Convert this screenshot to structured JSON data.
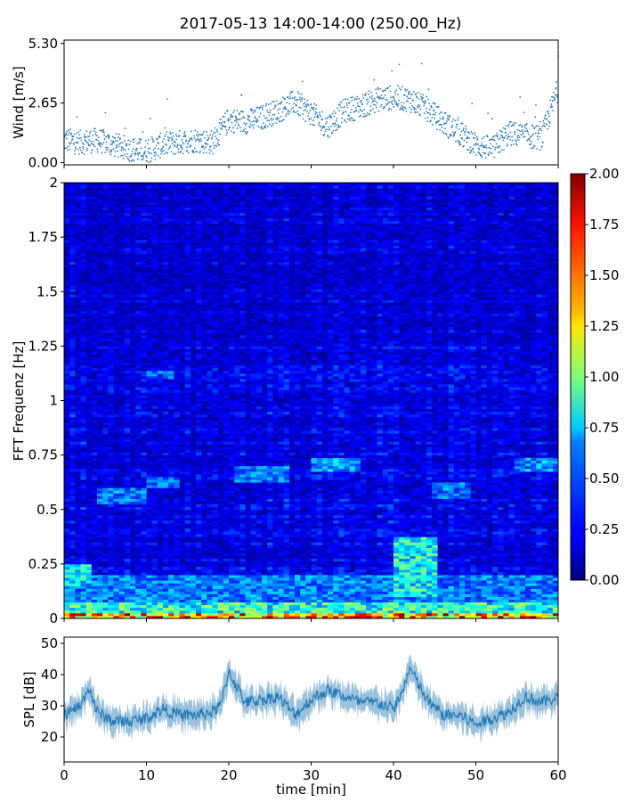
{
  "title": "2017-05-13 14:00-14:00 (250.00_Hz)",
  "chart_data": [
    {
      "id": "wind",
      "type": "scatter",
      "ylabel": "Wind [m/s]",
      "xlabel": "",
      "xlim": [
        0,
        60
      ],
      "ylim": [
        -0.1,
        5.45
      ],
      "yticks": [
        0.0,
        2.65,
        5.3
      ],
      "ytick_labels": [
        "0.00",
        "2.65",
        "5.30"
      ],
      "xticks": [
        0,
        10,
        20,
        30,
        40,
        50,
        60
      ],
      "marker_color": "#1f77b4",
      "trend": {
        "x": [
          0,
          2,
          4,
          6,
          8,
          10,
          12,
          14,
          16,
          18,
          20,
          22,
          24,
          26,
          28,
          30,
          32,
          34,
          36,
          38,
          40,
          42,
          44,
          46,
          48,
          50,
          52,
          54,
          56,
          58,
          60
        ],
        "y": [
          1.0,
          0.9,
          1.0,
          0.8,
          0.6,
          0.5,
          0.8,
          0.9,
          1.0,
          0.9,
          1.9,
          1.8,
          2.0,
          2.3,
          2.7,
          2.2,
          1.6,
          2.3,
          2.5,
          2.8,
          2.9,
          2.8,
          2.4,
          1.8,
          1.3,
          0.8,
          0.6,
          1.3,
          1.2,
          1.1,
          3.3
        ]
      }
    },
    {
      "id": "spectrogram",
      "type": "heatmap",
      "ylabel": "FFT Frequenz [Hz]",
      "xlabel": "",
      "xlim": [
        0,
        60
      ],
      "ylim": [
        0,
        2
      ],
      "yticks": [
        0,
        0.25,
        0.5,
        0.75,
        1,
        1.25,
        1.5,
        1.75,
        2
      ],
      "ytick_labels": [
        "0",
        "0.25",
        "0.5",
        "0.75",
        "1",
        "1.25",
        "1.5",
        "1.75",
        "2"
      ],
      "xticks": [
        0,
        10,
        20,
        30,
        40,
        50,
        60
      ],
      "colormap": "jet",
      "colorbar": {
        "min": 0,
        "max": 2,
        "ticks": [
          0,
          0.25,
          0.5,
          0.75,
          1.0,
          1.25,
          1.5,
          1.75,
          2.0
        ],
        "tick_labels": [
          "0.00",
          "0.25",
          "0.50",
          "0.75",
          "1.00",
          "1.25",
          "1.50",
          "1.75",
          "2.00"
        ]
      },
      "baseline_level": 0.22,
      "bands": [
        {
          "x0": 0,
          "x1": 60,
          "f0": 0,
          "f1": 0.03,
          "value": 1.6
        },
        {
          "x0": 0,
          "x1": 60,
          "f0": 0.03,
          "f1": 0.08,
          "value": 0.9
        },
        {
          "x0": 0,
          "x1": 60,
          "f0": 0.08,
          "f1": 0.2,
          "value": 0.55
        },
        {
          "x0": 0,
          "x1": 3,
          "f0": 0.15,
          "f1": 0.25,
          "value": 0.75
        },
        {
          "x0": 4,
          "x1": 10,
          "f0": 0.52,
          "f1": 0.6,
          "value": 0.55
        },
        {
          "x0": 10,
          "x1": 14,
          "f0": 0.6,
          "f1": 0.65,
          "value": 0.55
        },
        {
          "x0": 21,
          "x1": 27,
          "f0": 0.62,
          "f1": 0.7,
          "value": 0.55
        },
        {
          "x0": 30,
          "x1": 36,
          "f0": 0.68,
          "f1": 0.74,
          "value": 0.6
        },
        {
          "x0": 40,
          "x1": 45,
          "f0": 0.1,
          "f1": 0.38,
          "value": 0.85
        },
        {
          "x0": 45,
          "x1": 49,
          "f0": 0.55,
          "f1": 0.62,
          "value": 0.55
        },
        {
          "x0": 55,
          "x1": 60,
          "f0": 0.68,
          "f1": 0.74,
          "value": 0.6
        },
        {
          "x0": 10,
          "x1": 13,
          "f0": 1.1,
          "f1": 1.14,
          "value": 0.5
        }
      ]
    },
    {
      "id": "spl",
      "type": "line",
      "ylabel": "SPL [dB]",
      "xlabel": "time [min]",
      "xlim": [
        0,
        60
      ],
      "ylim": [
        12,
        52
      ],
      "yticks": [
        20,
        30,
        40,
        50
      ],
      "ytick_labels": [
        "20",
        "30",
        "40",
        "50"
      ],
      "xticks": [
        0,
        10,
        20,
        30,
        40,
        50,
        60
      ],
      "xtick_labels": [
        "0",
        "10",
        "20",
        "30",
        "40",
        "50",
        "60"
      ],
      "line_color": "#1f77b4",
      "trend": {
        "x": [
          0,
          2,
          3,
          4,
          6,
          8,
          10,
          12,
          14,
          16,
          18,
          19,
          20,
          22,
          24,
          26,
          28,
          30,
          32,
          34,
          36,
          38,
          40,
          41,
          42,
          44,
          46,
          48,
          50,
          52,
          54,
          56,
          58,
          60
        ],
        "y": [
          27,
          30,
          36,
          28,
          25,
          25,
          26,
          29,
          27,
          27,
          28,
          30,
          41,
          31,
          32,
          33,
          27,
          32,
          35,
          33,
          31,
          31,
          29,
          34,
          42,
          32,
          27,
          27,
          24,
          26,
          28,
          33,
          31,
          33
        ]
      }
    }
  ]
}
